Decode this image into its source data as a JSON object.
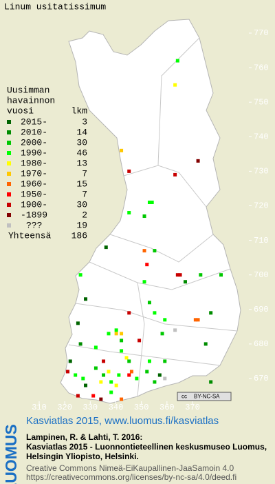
{
  "chart_data": {
    "type": "grid_map",
    "title": "Linum usitatissimum",
    "legend_title": [
      "Uusimman",
      "havainnon",
      "vuosi"
    ],
    "legend_count_header": "lkm",
    "legend": [
      {
        "label": "2015-",
        "count": 3,
        "color": "#006400"
      },
      {
        "label": "2010-",
        "count": 14,
        "color": "#008c00"
      },
      {
        "label": "2000-",
        "count": 30,
        "color": "#00c800"
      },
      {
        "label": "1990-",
        "count": 46,
        "color": "#00ff00"
      },
      {
        "label": "1980-",
        "count": 13,
        "color": "#ffff00"
      },
      {
        "label": "1970-",
        "count": 7,
        "color": "#ffc800"
      },
      {
        "label": "1960-",
        "count": 15,
        "color": "#ff6400"
      },
      {
        "label": "1950-",
        "count": 7,
        "color": "#ff0000"
      },
      {
        "label": "1900-",
        "count": 30,
        "color": "#c80000"
      },
      {
        "label": "-1899",
        "count": 2,
        "color": "#820000"
      },
      {
        "label": "???",
        "count": 19,
        "color": "#c0c0c0"
      }
    ],
    "total_label": "Yhteensä",
    "total": 186,
    "xlim": [
      310,
      370
    ],
    "ylim": [
      664,
      770
    ],
    "xticks": [
      310,
      320,
      330,
      340,
      350,
      360,
      370
    ],
    "yticks": [
      670,
      680,
      690,
      700,
      710,
      720,
      730,
      740,
      750,
      760,
      770
    ],
    "points": [
      [
        364,
        762,
        3
      ],
      [
        363,
        755,
        4
      ],
      [
        342,
        736,
        5
      ],
      [
        345,
        730,
        8
      ],
      [
        372,
        733,
        9
      ],
      [
        363,
        729,
        8
      ],
      [
        353,
        721,
        3
      ],
      [
        354,
        721,
        3
      ],
      [
        345,
        718,
        3
      ],
      [
        351,
        717,
        2
      ],
      [
        336,
        708,
        0
      ],
      [
        351,
        707,
        6
      ],
      [
        355,
        707,
        2
      ],
      [
        352,
        703,
        7
      ],
      [
        364,
        700,
        8
      ],
      [
        365,
        700,
        8
      ],
      [
        373,
        700,
        2
      ],
      [
        381,
        700,
        2
      ],
      [
        367,
        698,
        1
      ],
      [
        326,
        700,
        3
      ],
      [
        328,
        693,
        0
      ],
      [
        351,
        698,
        3
      ],
      [
        353,
        692,
        2
      ],
      [
        345,
        689,
        8
      ],
      [
        355,
        689,
        3
      ],
      [
        371,
        687,
        6
      ],
      [
        372,
        687,
        6
      ],
      [
        377,
        689,
        1
      ],
      [
        359,
        687,
        3
      ],
      [
        325,
        686,
        0
      ],
      [
        363,
        684,
        10
      ],
      [
        340,
        684,
        3
      ],
      [
        340,
        683,
        5
      ],
      [
        342,
        683,
        5
      ],
      [
        337,
        683,
        3
      ],
      [
        342,
        681,
        2
      ],
      [
        349,
        681,
        8
      ],
      [
        326,
        680,
        1
      ],
      [
        358,
        683,
        2
      ],
      [
        375,
        680,
        1
      ],
      [
        332,
        679,
        3
      ],
      [
        342,
        678,
        3
      ],
      [
        344,
        676,
        4
      ],
      [
        322,
        675,
        0
      ],
      [
        345,
        675,
        2
      ],
      [
        359,
        675,
        2
      ],
      [
        353,
        675,
        3
      ],
      [
        332,
        673,
        2
      ],
      [
        321,
        672,
        8
      ],
      [
        324,
        671,
        3
      ],
      [
        327,
        670,
        3
      ],
      [
        334,
        669,
        4
      ],
      [
        338,
        669,
        3
      ],
      [
        345,
        671,
        7
      ],
      [
        346,
        672,
        6
      ],
      [
        348,
        670,
        3
      ],
      [
        352,
        672,
        2
      ],
      [
        328,
        668,
        0
      ],
      [
        331,
        665,
        7
      ],
      [
        334,
        664,
        9
      ],
      [
        338,
        666,
        3
      ],
      [
        342,
        664,
        6
      ],
      [
        340,
        668,
        4
      ],
      [
        325,
        665,
        8
      ],
      [
        355,
        669,
        2
      ],
      [
        359,
        670,
        10
      ],
      [
        377,
        669,
        1
      ],
      [
        357,
        671,
        0
      ],
      [
        335,
        675,
        8
      ],
      [
        337,
        672,
        4
      ],
      [
        335,
        671,
        2
      ],
      [
        341,
        671,
        3
      ]
    ],
    "license_icon": "cc",
    "license_badge": "BY-NC-SA"
  },
  "footer": {
    "logo": "LUOMUS",
    "headline": "Kasviatlas 2015, www.luomus.fi/kasviatlas",
    "citation": [
      "Lampinen, R. & Lahti, T. 2016:",
      "Kasviatlas 2015 - Luonnontieteellinen keskusmuseo Luomus,",
      "Helsingin Yliopisto, Helsinki."
    ],
    "license": [
      "Creative Commons Nimeä-EiKaupallinen-JaaSamoin 4.0",
      "https://creativecommons.org/licenses/by-nc-sa/4.0/deed.fi"
    ]
  }
}
